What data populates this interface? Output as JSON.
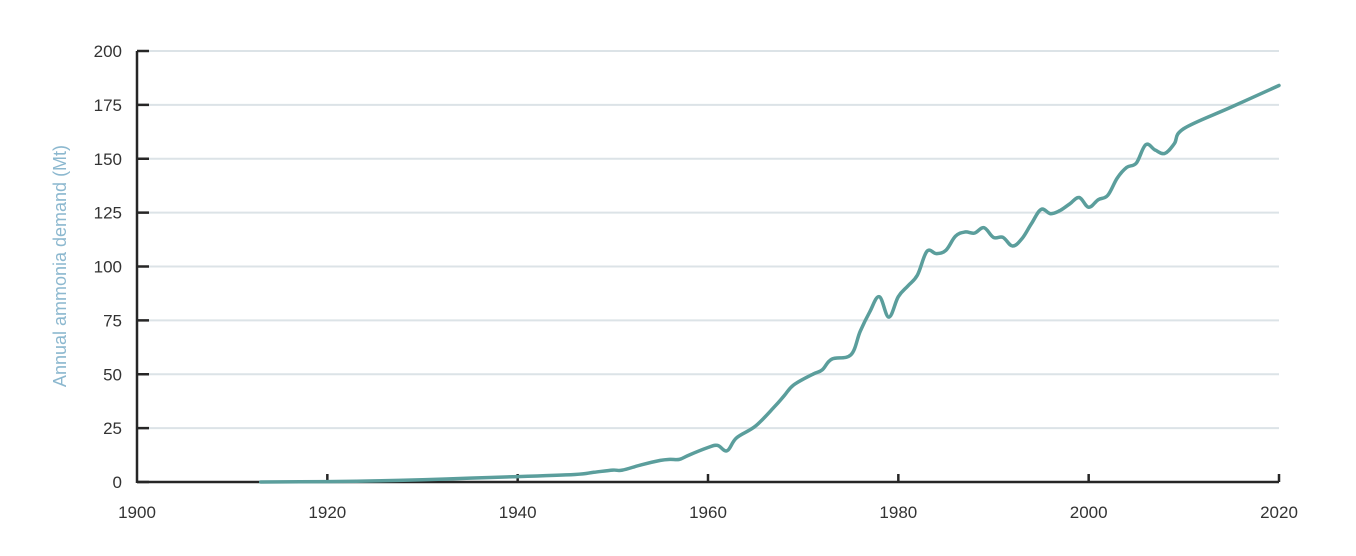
{
  "chart_data": {
    "type": "line",
    "title": "",
    "xlabel": "",
    "ylabel": "Annual ammonia demand (Mt)",
    "xlim": [
      1900,
      2020
    ],
    "ylim": [
      0,
      200
    ],
    "grid": {
      "horizontal": true,
      "vertical": false
    },
    "legend": null,
    "x_ticks": [
      1900,
      1920,
      1940,
      1960,
      1980,
      2000,
      2020
    ],
    "x_tick_labels": [
      "1900",
      "1920",
      "1940",
      "1960",
      "1980",
      "2000",
      "2020"
    ],
    "y_ticks": [
      0,
      25,
      50,
      75,
      100,
      125,
      150,
      175,
      200
    ],
    "y_tick_labels": [
      "0",
      "25",
      "50",
      "75",
      "100",
      "125",
      "150",
      "175",
      "200"
    ],
    "series": [
      {
        "name": "Annual ammonia demand",
        "color": "#5b9e9c",
        "x": [
          1913,
          1920,
          1925,
          1930,
          1935,
          1940,
          1946,
          1948,
          1950,
          1951,
          1953,
          1955,
          1956,
          1957,
          1958,
          1960,
          1961,
          1962,
          1963,
          1965,
          1967,
          1968,
          1969,
          1971,
          1972,
          1973,
          1975,
          1976,
          1977,
          1978,
          1979,
          1980,
          1981,
          1982,
          1983,
          1984,
          1985,
          1986,
          1987,
          1988,
          1989,
          1990,
          1991,
          1992,
          1993,
          1994,
          1995,
          1996,
          1997,
          1998,
          1999,
          2000,
          2001,
          2002,
          2003,
          2004,
          2005,
          2006,
          2007,
          2008,
          2009,
          2010,
          2015,
          2020
        ],
        "values": [
          0,
          0.2,
          0.5,
          1,
          1.8,
          2.5,
          3.5,
          4.5,
          5.5,
          5.5,
          8,
          10,
          10.5,
          10.5,
          12.5,
          16,
          17,
          14.5,
          20.5,
          26,
          35,
          40,
          45,
          50,
          52,
          57,
          59,
          70,
          79,
          86,
          76.5,
          86,
          91,
          96,
          107,
          106,
          107.5,
          114,
          116,
          115.5,
          118,
          113.5,
          113.5,
          109.5,
          113,
          120,
          126.5,
          124.5,
          126,
          129,
          132,
          127.5,
          131,
          133,
          141,
          146,
          148,
          156.5,
          154,
          152.5,
          157,
          164,
          174,
          184
        ]
      }
    ]
  }
}
